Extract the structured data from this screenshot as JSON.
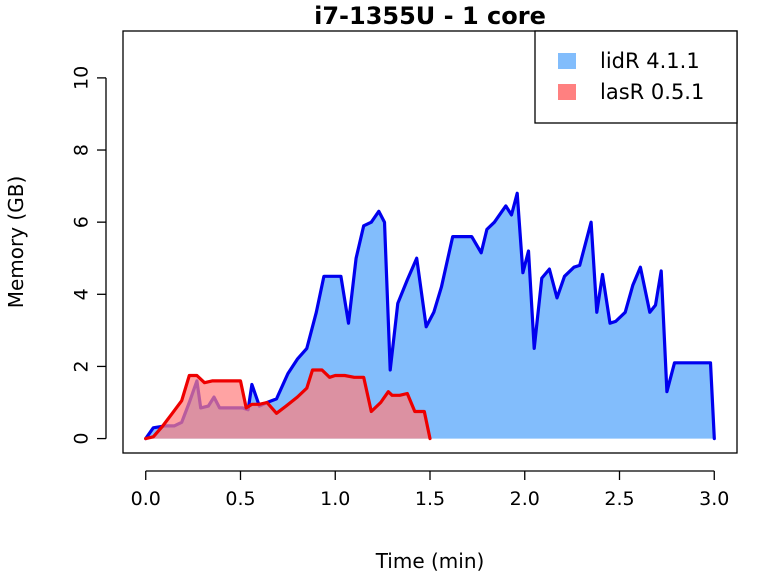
{
  "chart_data": {
    "type": "area",
    "title": "i7-1355U - 1 core",
    "xlabel": "Time (min)",
    "ylabel": "Memory (GB)",
    "xlim": [
      -0.12,
      3.12
    ],
    "ylim": [
      -0.4,
      11.3
    ],
    "xticks": [
      "0.0",
      "0.5",
      "1.0",
      "1.5",
      "2.0",
      "2.5",
      "3.0"
    ],
    "yticks": [
      "0",
      "2",
      "4",
      "6",
      "8",
      "10"
    ],
    "grid": false,
    "legend_position": "top-right",
    "series": [
      {
        "name": "lidR 4.1.1",
        "fill": "#82bdfc",
        "stroke": "#0000ee",
        "x": [
          0.0,
          0.04,
          0.1,
          0.15,
          0.19,
          0.23,
          0.27,
          0.29,
          0.33,
          0.36,
          0.39,
          0.43,
          0.47,
          0.51,
          0.54,
          0.56,
          0.6,
          0.64,
          0.69,
          0.75,
          0.8,
          0.85,
          0.9,
          0.94,
          1.03,
          1.07,
          1.11,
          1.15,
          1.19,
          1.23,
          1.26,
          1.29,
          1.33,
          1.38,
          1.43,
          1.48,
          1.52,
          1.56,
          1.62,
          1.72,
          1.77,
          1.8,
          1.84,
          1.88,
          1.9,
          1.93,
          1.96,
          1.99,
          2.02,
          2.05,
          2.09,
          2.13,
          2.17,
          2.21,
          2.26,
          2.29,
          2.32,
          2.35,
          2.38,
          2.41,
          2.45,
          2.48,
          2.53,
          2.57,
          2.61,
          2.66,
          2.69,
          2.72,
          2.75,
          2.79,
          2.98,
          3.0
        ],
        "y": [
          0.0,
          0.3,
          0.35,
          0.35,
          0.45,
          1.0,
          1.6,
          0.85,
          0.9,
          1.15,
          0.85,
          0.85,
          0.85,
          0.85,
          0.8,
          1.5,
          0.9,
          1.0,
          1.1,
          1.8,
          2.2,
          2.5,
          3.5,
          4.5,
          4.5,
          3.2,
          5.0,
          5.9,
          6.0,
          6.3,
          6.0,
          1.9,
          3.75,
          4.4,
          5.0,
          3.1,
          3.5,
          4.2,
          5.6,
          5.6,
          5.15,
          5.8,
          6.0,
          6.3,
          6.45,
          6.2,
          6.8,
          4.6,
          5.2,
          2.5,
          4.45,
          4.7,
          3.9,
          4.5,
          4.75,
          4.8,
          5.4,
          6.0,
          3.5,
          4.55,
          3.2,
          3.25,
          3.5,
          4.25,
          4.75,
          3.5,
          3.7,
          4.65,
          1.3,
          2.1,
          2.1,
          0.0
        ]
      },
      {
        "name": "lasR 0.5.1",
        "fill": "#ff8080",
        "stroke": "#ee0000",
        "x": [
          0.0,
          0.04,
          0.09,
          0.14,
          0.19,
          0.23,
          0.27,
          0.31,
          0.35,
          0.39,
          0.43,
          0.46,
          0.5,
          0.53,
          0.56,
          0.6,
          0.64,
          0.69,
          0.74,
          0.8,
          0.85,
          0.88,
          0.93,
          0.97,
          1.0,
          1.05,
          1.1,
          1.15,
          1.19,
          1.24,
          1.28,
          1.3,
          1.34,
          1.38,
          1.42,
          1.47,
          1.5
        ],
        "y": [
          0.0,
          0.05,
          0.35,
          0.7,
          1.05,
          1.75,
          1.75,
          1.55,
          1.6,
          1.6,
          1.6,
          1.6,
          1.6,
          0.85,
          0.95,
          0.95,
          1.0,
          0.7,
          0.9,
          1.15,
          1.4,
          1.9,
          1.9,
          1.7,
          1.75,
          1.75,
          1.7,
          1.7,
          0.75,
          1.0,
          1.3,
          1.2,
          1.2,
          1.25,
          0.75,
          0.75,
          0.0
        ]
      }
    ]
  }
}
